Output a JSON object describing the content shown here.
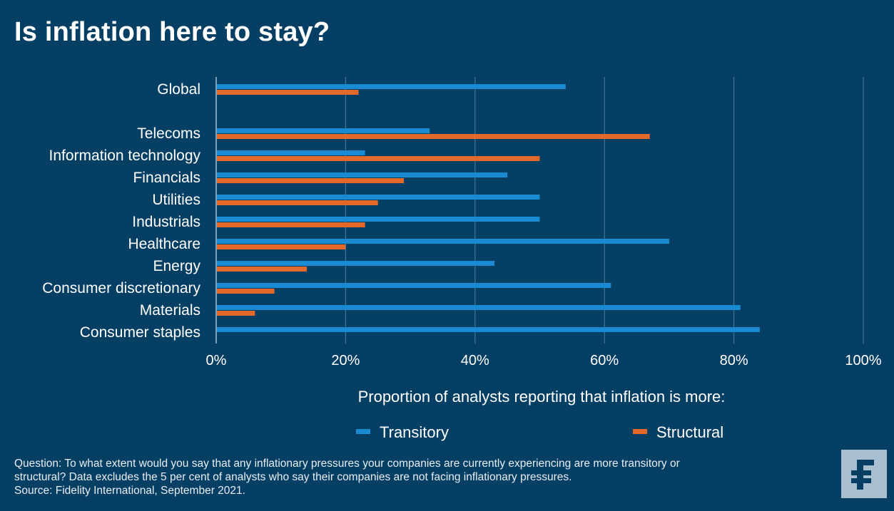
{
  "title": "Is inflation here to stay?",
  "colors": {
    "transitory": "#1a8ad2",
    "structural": "#e3692a",
    "background": "#063f64"
  },
  "chart_data": {
    "type": "bar",
    "orientation": "horizontal",
    "categories": [
      "Global",
      "Telecoms",
      "Information technology",
      "Financials",
      "Utilities",
      "Industrials",
      "Healthcare",
      "Energy",
      "Consumer discretionary",
      "Materials",
      "Consumer staples"
    ],
    "series": [
      {
        "name": "Transitory",
        "values": [
          54,
          33,
          23,
          45,
          50,
          50,
          70,
          43,
          61,
          81,
          84
        ]
      },
      {
        "name": "Structural",
        "values": [
          22,
          67,
          50,
          29,
          25,
          23,
          20,
          14,
          9,
          6,
          0
        ]
      }
    ],
    "xlim": [
      0,
      100
    ],
    "xticks": [
      "0%",
      "20%",
      "40%",
      "60%",
      "80%",
      "100%"
    ],
    "xlabel": "Proportion of analysts reporting that inflation is more:",
    "grid": true,
    "legend_position": "bottom"
  },
  "footnote": {
    "line1": "Question: To what extent would you say that any inflationary pressures your companies are currently experiencing are more transitory or",
    "line2": "structural? Data excludes the 5 per cent of analysts who say their companies are not facing inflationary pressures.",
    "line3": "Source: Fidelity International, September 2021."
  },
  "logo": {
    "icon": "fidelity-f-icon",
    "glyph": "₣"
  }
}
